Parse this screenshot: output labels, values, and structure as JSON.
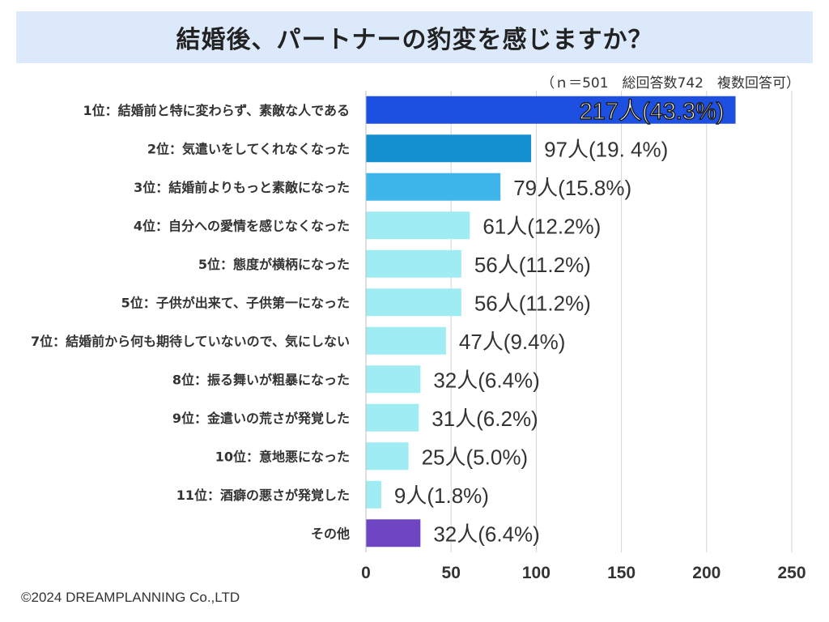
{
  "title": "結婚後、パートナーの豹変を感じますか？",
  "note": "（ｎ＝501　総回答数742　複数回答可）",
  "copyright": "©2024 DREAMPLANNING Co.,LTD",
  "colors": {
    "title_bg": "#dbe9fb",
    "bar_top": "#1d4fe0",
    "bar_second": "#1590cf",
    "bar_third": "#3eb6ec",
    "bar_light": "#9fecf3",
    "bar_other": "#6f45c4",
    "grid": "#d4d4d4"
  },
  "chart_data": {
    "type": "bar",
    "orientation": "horizontal",
    "title": "結婚後、パートナーの豹変を感じますか？",
    "xlim": [
      0,
      250
    ],
    "xticks": [
      0,
      50,
      100,
      150,
      200,
      250
    ],
    "grid": true,
    "categories": [
      "1位：結婚前と特に変わらず、素敵な人である",
      "2位：気遣いをしてくれなくなった",
      "3位：結婚前よりもっと素敵になった",
      "4位：自分への愛情を感じなくなった",
      "5位：態度が横柄になった",
      "5位：子供が出来て、子供第一になった",
      "7位：結婚前から何も期待していないので、気にしない",
      "8位：振る舞いが粗暴になった",
      "9位：金遣いの荒さが発覚した",
      "10位：意地悪になった",
      "11位：酒癖の悪さが発覚した",
      "その他"
    ],
    "values": [
      217,
      97,
      79,
      61,
      56,
      56,
      47,
      32,
      31,
      25,
      9,
      32
    ],
    "data_labels": [
      "217人(43.3%)",
      "97人(19. 4%)",
      "79人(15.8%)",
      "61人(12.2%)",
      "56人(11.2%)",
      "56人(11.2%)",
      "47人(9.4%)",
      "32人(6.4%)",
      "31人(6.2%)",
      "25人(5.0%)",
      "9人(1.8%)",
      "32人(6.4%)"
    ],
    "bar_colors": [
      "#1d4fe0",
      "#1590cf",
      "#3eb6ec",
      "#9fecf3",
      "#9fecf3",
      "#9fecf3",
      "#9fecf3",
      "#9fecf3",
      "#9fecf3",
      "#9fecf3",
      "#9fecf3",
      "#6f45c4"
    ]
  }
}
